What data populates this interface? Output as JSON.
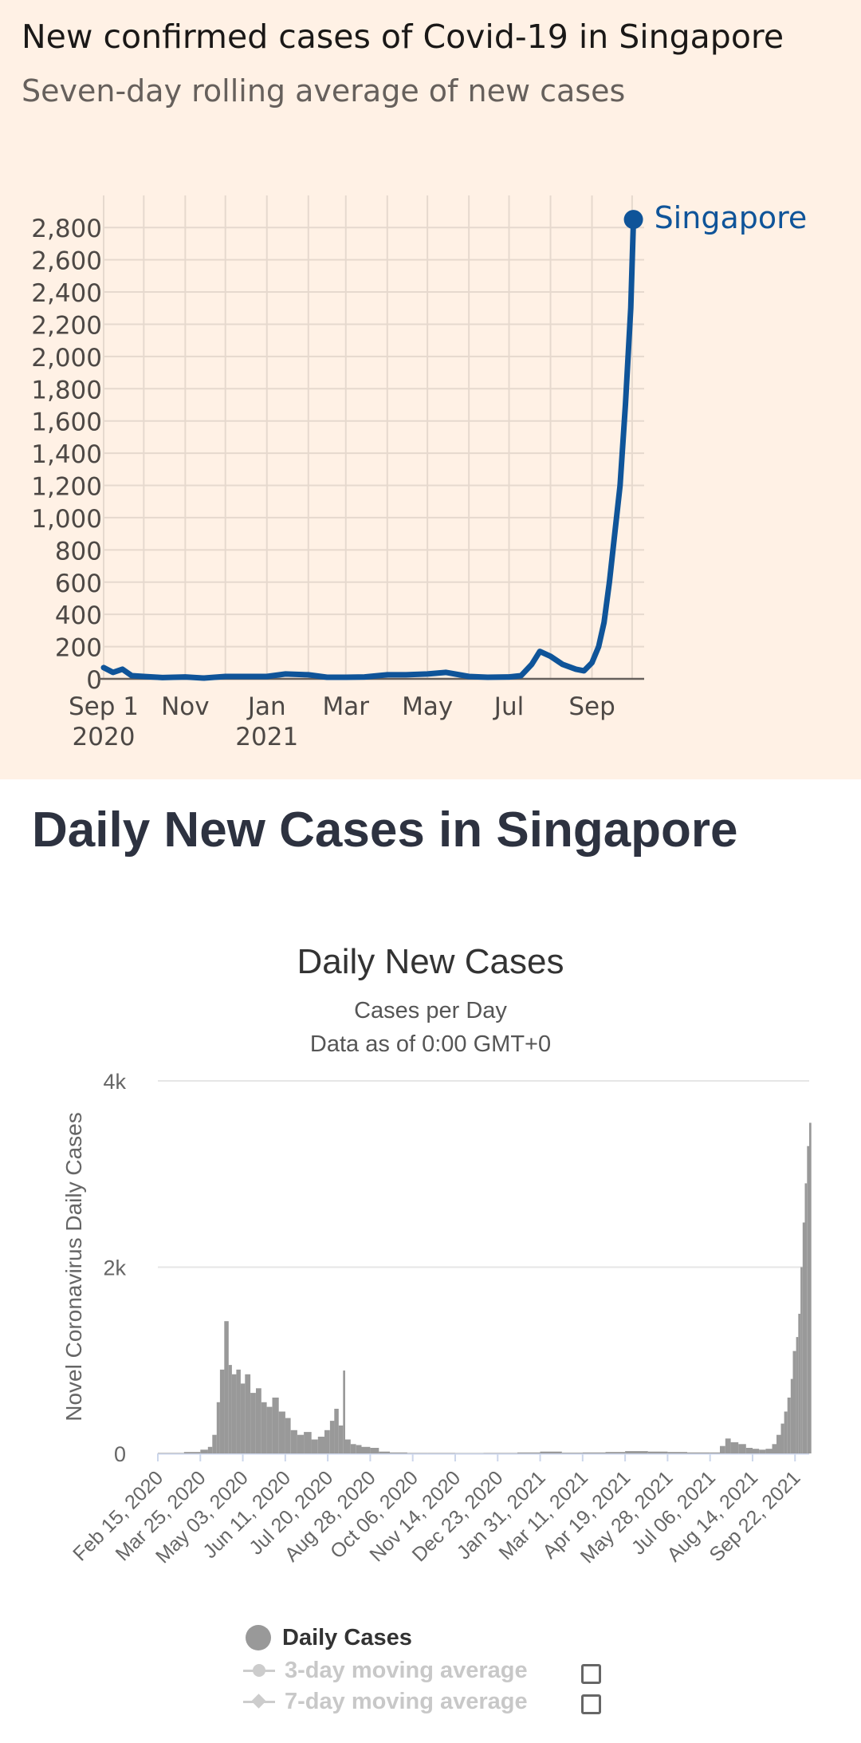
{
  "ft_chart": {
    "title": "New confirmed cases of Covid-19 in Singapore",
    "subtitle": "Seven-day rolling average of new cases",
    "colors": {
      "line": "#0f5499",
      "grid": "#e6d9ce",
      "axis": "#66605c",
      "background": "#fff1e5"
    },
    "y_ticks": [
      "2,800",
      "2,600",
      "2,400",
      "2,200",
      "2,000",
      "1,800",
      "1,600",
      "1,400",
      "1,200",
      "1,000",
      "800",
      "600",
      "400",
      "200",
      "0"
    ],
    "x_ticks": [
      {
        "label": "Sep 1",
        "sub": "2020"
      },
      {
        "label": "Nov",
        "sub": ""
      },
      {
        "label": "Jan",
        "sub": "2021"
      },
      {
        "label": "Mar",
        "sub": ""
      },
      {
        "label": "May",
        "sub": ""
      },
      {
        "label": "Jul",
        "sub": ""
      },
      {
        "label": "Sep",
        "sub": ""
      }
    ],
    "series_label": "Singapore"
  },
  "wm_page": {
    "heading": "Daily New Cases in Singapore"
  },
  "wm_chart": {
    "title": "Daily New Cases",
    "subtitle_1": "Cases per Day",
    "subtitle_2": "Data as of 0:00 GMT+0",
    "ylabel": "Novel Coronavirus Daily Cases",
    "y_ticks": [
      "4k",
      "2k",
      "0"
    ],
    "x_ticks": [
      "Feb 15, 2020",
      "Mar 25, 2020",
      "May 03, 2020",
      "Jun 11, 2020",
      "Jul 20, 2020",
      "Aug 28, 2020",
      "Oct 06, 2020",
      "Nov 14, 2020",
      "Dec 23, 2020",
      "Jan 31, 2021",
      "Mar 11, 2021",
      "Apr 19, 2021",
      "May 28, 2021",
      "Jul 06, 2021",
      "Aug 14, 2021",
      "Sep 22, 2021"
    ],
    "legend": {
      "daily": "Daily Cases",
      "ma3": "3-day moving average",
      "ma7": "7-day moving average"
    },
    "colors": {
      "bars": "#999999",
      "grid": "#e6e6e6",
      "inactive": "#cccccc"
    }
  },
  "chart_data": [
    {
      "type": "line",
      "title": "New confirmed cases of Covid-19 in Singapore",
      "subtitle": "Seven-day rolling average of new cases",
      "xlabel": "",
      "ylabel": "",
      "x_range": [
        "2020-09-01",
        "2021-10-10"
      ],
      "ylim": [
        0,
        2900
      ],
      "grid": true,
      "series": [
        {
          "name": "Singapore",
          "x": [
            "2020-09-01",
            "2020-09-08",
            "2020-09-15",
            "2020-09-22",
            "2020-10-01",
            "2020-10-15",
            "2020-11-01",
            "2020-11-15",
            "2020-12-01",
            "2020-12-15",
            "2021-01-01",
            "2021-01-15",
            "2021-02-01",
            "2021-02-15",
            "2021-03-01",
            "2021-03-15",
            "2021-04-01",
            "2021-04-15",
            "2021-05-01",
            "2021-05-15",
            "2021-06-01",
            "2021-06-15",
            "2021-07-01",
            "2021-07-10",
            "2021-07-18",
            "2021-07-24",
            "2021-08-01",
            "2021-08-10",
            "2021-08-20",
            "2021-08-26",
            "2021-09-01",
            "2021-09-06",
            "2021-09-10",
            "2021-09-14",
            "2021-09-18",
            "2021-09-22",
            "2021-09-26",
            "2021-09-30",
            "2021-10-02"
          ],
          "values": [
            70,
            40,
            60,
            20,
            15,
            8,
            12,
            5,
            15,
            15,
            15,
            30,
            25,
            10,
            10,
            12,
            25,
            25,
            30,
            40,
            15,
            10,
            12,
            20,
            90,
            170,
            140,
            90,
            60,
            50,
            100,
            200,
            350,
            600,
            900,
            1200,
            1700,
            2300,
            2850
          ]
        }
      ]
    },
    {
      "type": "bar",
      "title": "Daily New Cases",
      "subtitle": "Cases per Day",
      "xlabel": "",
      "ylabel": "Novel Coronavirus Daily Cases",
      "ylim": [
        0,
        4000
      ],
      "grid": true,
      "legend": "bottom",
      "x_range": [
        "2020-02-15",
        "2021-10-05"
      ],
      "series": [
        {
          "name": "Daily Cases",
          "x": [
            "2020-02-15",
            "2020-03-10",
            "2020-03-25",
            "2020-04-01",
            "2020-04-05",
            "2020-04-09",
            "2020-04-12",
            "2020-04-16",
            "2020-04-20",
            "2020-04-23",
            "2020-04-27",
            "2020-05-01",
            "2020-05-05",
            "2020-05-10",
            "2020-05-15",
            "2020-05-20",
            "2020-05-25",
            "2020-05-30",
            "2020-06-05",
            "2020-06-11",
            "2020-06-16",
            "2020-06-22",
            "2020-06-28",
            "2020-07-05",
            "2020-07-11",
            "2020-07-17",
            "2020-07-22",
            "2020-07-26",
            "2020-07-30",
            "2020-08-03",
            "2020-08-05",
            "2020-08-10",
            "2020-08-15",
            "2020-08-20",
            "2020-08-28",
            "2020-09-05",
            "2020-09-15",
            "2020-10-01",
            "2020-10-20",
            "2020-11-14",
            "2020-12-10",
            "2021-01-10",
            "2021-01-31",
            "2021-02-20",
            "2021-03-11",
            "2021-04-01",
            "2021-04-19",
            "2021-05-10",
            "2021-05-28",
            "2021-06-15",
            "2021-07-06",
            "2021-07-15",
            "2021-07-20",
            "2021-07-25",
            "2021-08-01",
            "2021-08-08",
            "2021-08-14",
            "2021-08-20",
            "2021-08-26",
            "2021-09-01",
            "2021-09-05",
            "2021-09-09",
            "2021-09-12",
            "2021-09-15",
            "2021-09-18",
            "2021-09-20",
            "2021-09-23",
            "2021-09-25",
            "2021-09-27",
            "2021-09-29",
            "2021-10-01",
            "2021-10-03",
            "2021-10-05"
          ],
          "values": [
            5,
            15,
            40,
            70,
            200,
            550,
            900,
            1420,
            950,
            850,
            900,
            750,
            850,
            650,
            700,
            550,
            500,
            600,
            450,
            380,
            250,
            200,
            230,
            150,
            180,
            250,
            350,
            480,
            300,
            890,
            150,
            100,
            90,
            70,
            60,
            20,
            10,
            5,
            5,
            3,
            5,
            10,
            20,
            8,
            10,
            15,
            25,
            20,
            15,
            10,
            10,
            80,
            160,
            120,
            100,
            60,
            50,
            40,
            50,
            100,
            200,
            320,
            450,
            600,
            800,
            1100,
            1250,
            1500,
            2000,
            2480,
            2900,
            3300,
            3550
          ]
        }
      ]
    }
  ]
}
